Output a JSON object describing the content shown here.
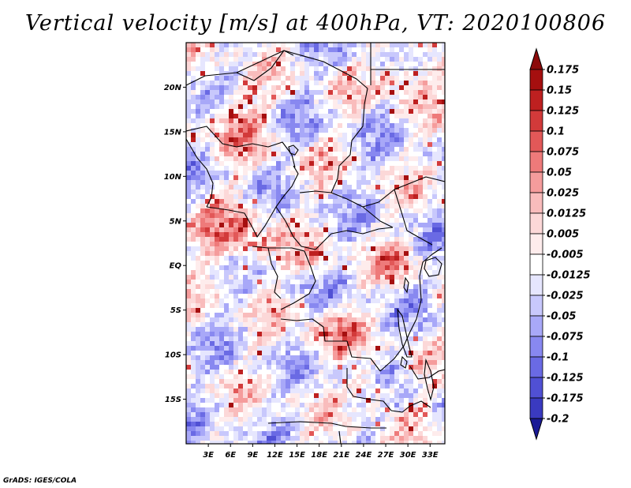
{
  "title": "Vertical velocity [m/s] at 400hPa, VT: 2020100806",
  "credit": "GrADS: IGES/COLA",
  "map": {
    "variable": "Vertical velocity",
    "units": "m/s",
    "level": "400hPa",
    "valid_time": "2020100806",
    "lon_range": [
      0,
      35
    ],
    "lat_range": [
      -20,
      25
    ],
    "lon_ticks": [
      {
        "value": 3,
        "label": "3E"
      },
      {
        "value": 6,
        "label": "6E"
      },
      {
        "value": 9,
        "label": "9E"
      },
      {
        "value": 12,
        "label": "12E"
      },
      {
        "value": 15,
        "label": "15E"
      },
      {
        "value": 18,
        "label": "18E"
      },
      {
        "value": 21,
        "label": "21E"
      },
      {
        "value": 24,
        "label": "24E"
      },
      {
        "value": 27,
        "label": "27E"
      },
      {
        "value": 30,
        "label": "30E"
      },
      {
        "value": 33,
        "label": "33E"
      }
    ],
    "lat_ticks": [
      {
        "value": 20,
        "label": "20N"
      },
      {
        "value": 15,
        "label": "15N"
      },
      {
        "value": 10,
        "label": "10N"
      },
      {
        "value": 5,
        "label": "5N"
      },
      {
        "value": 0,
        "label": "EQ"
      },
      {
        "value": -5,
        "label": "5S"
      },
      {
        "value": -10,
        "label": "10S"
      },
      {
        "value": -15,
        "label": "15S"
      }
    ]
  },
  "colorbar": {
    "levels": [
      {
        "label": "0.175",
        "color": "#a50f0f"
      },
      {
        "label": "0.15",
        "color": "#be2020"
      },
      {
        "label": "0.125",
        "color": "#d23a3a"
      },
      {
        "label": "0.1",
        "color": "#e25858"
      },
      {
        "label": "0.075",
        "color": "#ee7a7a"
      },
      {
        "label": "0.05",
        "color": "#f59c9c"
      },
      {
        "label": "0.025",
        "color": "#f9bcbc"
      },
      {
        "label": "0.0125",
        "color": "#fcd8d8"
      },
      {
        "label": "0.005",
        "color": "#feecec"
      },
      {
        "label": "-0.005",
        "color": "#ffffff"
      },
      {
        "label": "-0.0125",
        "color": "#e6e6fe"
      },
      {
        "label": "-0.025",
        "color": "#c8c8fc"
      },
      {
        "label": "-0.05",
        "color": "#a8a8f8"
      },
      {
        "label": "-0.075",
        "color": "#8888f0"
      },
      {
        "label": "-0.1",
        "color": "#6a6ae4"
      },
      {
        "label": "-0.125",
        "color": "#5050d4"
      },
      {
        "label": "-0.175",
        "color": "#3a3ac0"
      },
      {
        "label": "-0.2",
        "color": "#2626aa"
      }
    ],
    "top_arrow_color": "#8c0a0a",
    "bottom_arrow_color": "#1a1a96"
  }
}
